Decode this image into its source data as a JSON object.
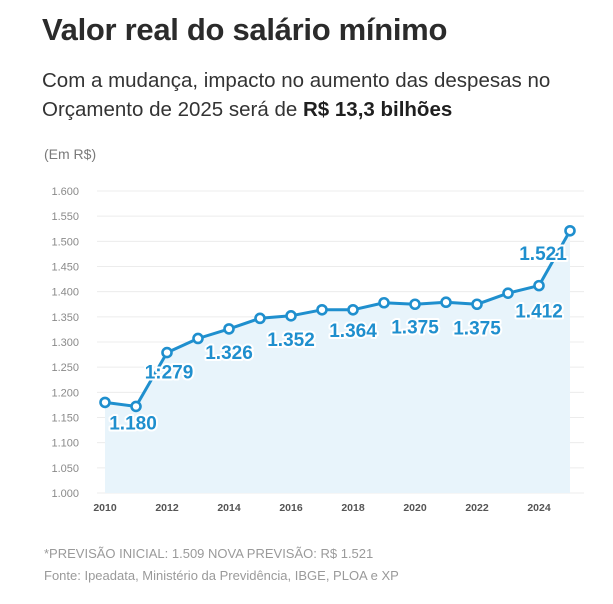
{
  "title": "Valor real do salário mínimo",
  "subtitle": {
    "text": "Com a mudança, impacto no aumento das despesas no Orçamento de 2025 será de",
    "highlight": "R$ 13,3 bilhões"
  },
  "unit_label": "(Em R$)",
  "footnotes": {
    "note": "*PREVISÃO INICIAL: 1.509 NOVA PREVISÃO: R$ 1.521",
    "source": "Fonte: Ipeadata, Ministério da Previdência, IBGE, PLOA e XP"
  },
  "colors": {
    "line": "#1f8fce",
    "fill": "#e8f4fb",
    "label": "#1f8fce",
    "axis_text": "#8a8a8a",
    "grid": "#ececec"
  },
  "chart_data": {
    "type": "line",
    "title": "Valor real do salário mínimo",
    "x": [
      2010,
      2011,
      2012,
      2013,
      2014,
      2015,
      2016,
      2017,
      2018,
      2019,
      2020,
      2021,
      2022,
      2023,
      2024,
      2025
    ],
    "series": [
      {
        "values": [
          1180,
          1172,
          1279,
          1307,
          1326,
          1347,
          1352,
          1364,
          1364,
          1378,
          1375,
          1379,
          1375,
          1397,
          1412,
          1521
        ]
      }
    ],
    "x_ticks": [
      2010,
      2012,
      2014,
      2016,
      2018,
      2020,
      2022,
      2024
    ],
    "y_ticks": [
      "1.000",
      "1.050",
      "1.100",
      "1.150",
      "1.200",
      "1.250",
      "1.300",
      "1.350",
      "1.400",
      "1.450",
      "1.500",
      "1.550",
      "1.600"
    ],
    "ylim": [
      1000,
      1600
    ],
    "data_labels": [
      {
        "year": 2010,
        "text": "1.180"
      },
      {
        "year": 2012,
        "text": "1:279"
      },
      {
        "year": 2014,
        "text": "1.326"
      },
      {
        "year": 2016,
        "text": "1.352"
      },
      {
        "year": 2018,
        "text": "1.364"
      },
      {
        "year": 2020,
        "text": "1.375"
      },
      {
        "year": 2022,
        "text": "1.375"
      },
      {
        "year": 2024,
        "text": "1.412"
      },
      {
        "year": 2025,
        "text": "1.521"
      }
    ],
    "grid": true,
    "legend": "none"
  }
}
